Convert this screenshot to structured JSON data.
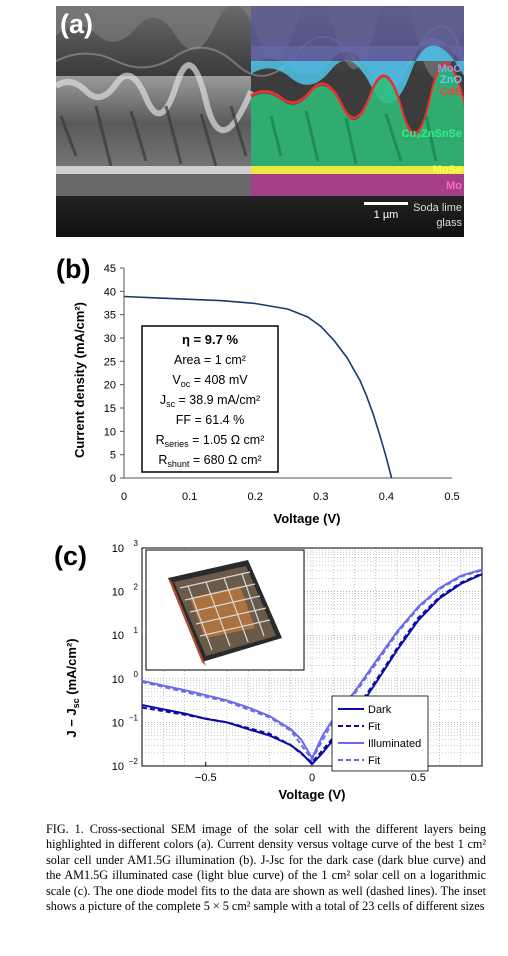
{
  "panel_a": {
    "label": "(a)",
    "layers": [
      {
        "text": "MoO",
        "color": "#8aa0f0"
      },
      {
        "text": "ZnO",
        "color": "#5fd0f0"
      },
      {
        "text": "CdS",
        "color": "#ff3b3b"
      },
      {
        "text": "Cu₂ZnSnSe",
        "color": "#33ee88"
      },
      {
        "text": "MoSe",
        "color": "#ffff55"
      },
      {
        "text": "Mo",
        "color": "#ff66cc"
      },
      {
        "text": "Soda lime",
        "color": "#dddddd"
      },
      {
        "text": "glass",
        "color": "#dddddd"
      }
    ],
    "scale_bar": "1 µm"
  },
  "chart_data": [
    {
      "type": "line",
      "panel_label": "(b)",
      "xlabel": "Voltage (V)",
      "ylabel": "Current density (mA/cm²)",
      "xlim": [
        0,
        0.5
      ],
      "ylim": [
        0,
        45
      ],
      "xticks": [
        "0",
        "0.1",
        "0.2",
        "0.3",
        "0.4",
        "0.5"
      ],
      "yticks": [
        "0",
        "5",
        "10",
        "15",
        "20",
        "25",
        "30",
        "35",
        "40",
        "45"
      ],
      "grid": false,
      "series": [
        {
          "x": [
            0,
            0.05,
            0.1,
            0.15,
            0.2,
            0.25,
            0.28,
            0.3,
            0.32,
            0.34,
            0.36,
            0.37,
            0.38,
            0.39,
            0.4,
            0.408
          ],
          "y": [
            38.9,
            38.6,
            38.3,
            38.0,
            37.4,
            36.2,
            34.5,
            32.5,
            29.5,
            25.8,
            20.8,
            17.5,
            13.6,
            9.2,
            4.3,
            0
          ],
          "color": "#000000"
        }
      ],
      "annotation": {
        "title": "η = 9.7 %",
        "area": "Area = 1 cm²",
        "voc": "V",
        "voc_sub": "oc",
        "voc_val": " = 408 mV",
        "jsc": "J",
        "jsc_sub": "sc",
        "jsc_val": " = 38.9 mA/cm²",
        "ff": "FF = 61.4 %",
        "rseries": "R",
        "rseries_sub": "series",
        "rseries_val": " = 1.05 Ω cm²",
        "rshunt": "R",
        "rshunt_sub": "shunt",
        "rshunt_val": " = 680 Ω cm²"
      }
    },
    {
      "type": "line",
      "panel_label": "(c)",
      "xlabel": "Voltage (V)",
      "ylabel": "J − J",
      "ylabel_sub": "sc",
      "ylabel_unit": " (mA/cm²)",
      "xlim": [
        -0.8,
        0.8
      ],
      "ylim_log": [
        0.01,
        1000
      ],
      "y_scale": "log",
      "xticks": [
        "−0.5",
        "0",
        "0.5"
      ],
      "yticks": [
        "10",
        "10",
        "10",
        "10",
        "10",
        "10"
      ],
      "ytick_exponents": [
        "−2",
        "−1",
        "0",
        "1",
        "2",
        "3"
      ],
      "grid": true,
      "legend_position": "bottom-right",
      "series": [
        {
          "name": "Dark",
          "style": "solid",
          "color": "#0a0aa8",
          "x": [
            -0.8,
            -0.7,
            -0.6,
            -0.5,
            -0.4,
            -0.3,
            -0.2,
            -0.1,
            -0.05,
            0,
            0.05,
            0.1,
            0.2,
            0.3,
            0.4,
            0.5,
            0.6,
            0.7,
            0.8
          ],
          "y": [
            0.25,
            0.2,
            0.16,
            0.12,
            0.1,
            0.07,
            0.05,
            0.03,
            0.02,
            0.011,
            0.02,
            0.04,
            0.15,
            0.8,
            4.5,
            22,
            70,
            150,
            250
          ]
        },
        {
          "name": "Fit",
          "style": "dashed",
          "color": "#0a0aa8",
          "x": [
            -0.8,
            -0.6,
            -0.4,
            -0.2,
            -0.1,
            0,
            0.1,
            0.2,
            0.3,
            0.4,
            0.5,
            0.6,
            0.7,
            0.8
          ],
          "y": [
            0.22,
            0.15,
            0.1,
            0.055,
            0.03,
            0.012,
            0.045,
            0.18,
            0.9,
            5,
            25,
            75,
            160,
            260
          ]
        },
        {
          "name": "Illuminated",
          "style": "solid",
          "color": "#6b6be8",
          "x": [
            -0.8,
            -0.7,
            -0.6,
            -0.5,
            -0.4,
            -0.3,
            -0.2,
            -0.1,
            -0.05,
            0,
            0.05,
            0.1,
            0.2,
            0.3,
            0.4,
            0.5,
            0.6,
            0.7,
            0.8
          ],
          "y": [
            0.9,
            0.7,
            0.55,
            0.42,
            0.32,
            0.22,
            0.14,
            0.07,
            0.04,
            0.015,
            0.05,
            0.12,
            0.5,
            2.5,
            12,
            45,
            120,
            230,
            320
          ]
        },
        {
          "name": "Fit",
          "style": "dashed",
          "color": "#6b6be8",
          "x": [
            -0.8,
            -0.6,
            -0.4,
            -0.2,
            -0.1,
            0,
            0.1,
            0.2,
            0.3,
            0.4,
            0.5,
            0.6,
            0.7,
            0.8
          ],
          "y": [
            0.85,
            0.5,
            0.3,
            0.13,
            0.065,
            0.014,
            0.11,
            0.45,
            2.2,
            11,
            42,
            115,
            220,
            310
          ]
        }
      ]
    }
  ],
  "caption": {
    "text": "FIG. 1. Cross-sectional SEM image of the solar cell with the different layers being highlighted in different colors (a). Current density versus voltage curve of the best 1 cm² solar cell under AM1.5G illumination (b). J-Jsc for the dark case (dark blue curve) and the AM1.5G illuminated case (light blue curve) of the 1 cm² solar cell on a logarithmic scale (c). The one diode model fits to the data are shown as well (dashed lines). The inset shows a picture of the complete 5 × 5 cm² sample with a total of 23 cells of different sizes"
  }
}
